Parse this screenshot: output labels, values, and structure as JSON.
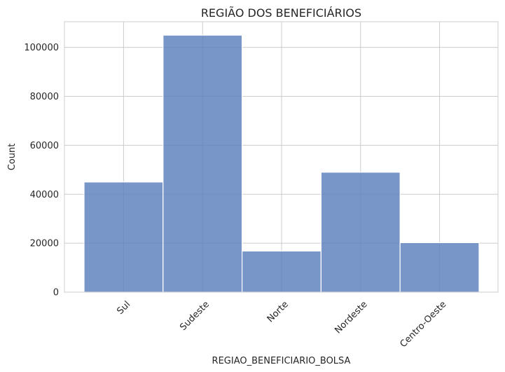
{
  "chart_data": {
    "type": "bar",
    "title": "REGIÃO DOS BENEFICIÁRIOS",
    "xlabel": "REGIAO_BENEFICIARIO_BOLSA",
    "ylabel": "Count",
    "categories": [
      "Sul",
      "Sudeste",
      "Norte",
      "Nordeste",
      "Centro-Oeste"
    ],
    "values": [
      45000,
      105000,
      16800,
      49000,
      20200
    ],
    "ylim": [
      0,
      110500
    ],
    "yticks": [
      0,
      20000,
      40000,
      60000,
      80000,
      100000
    ],
    "grid": true,
    "bar_color": "#5b7fbc",
    "bar_edge_color": "#ffffff",
    "grid_color": "#cccccc"
  }
}
